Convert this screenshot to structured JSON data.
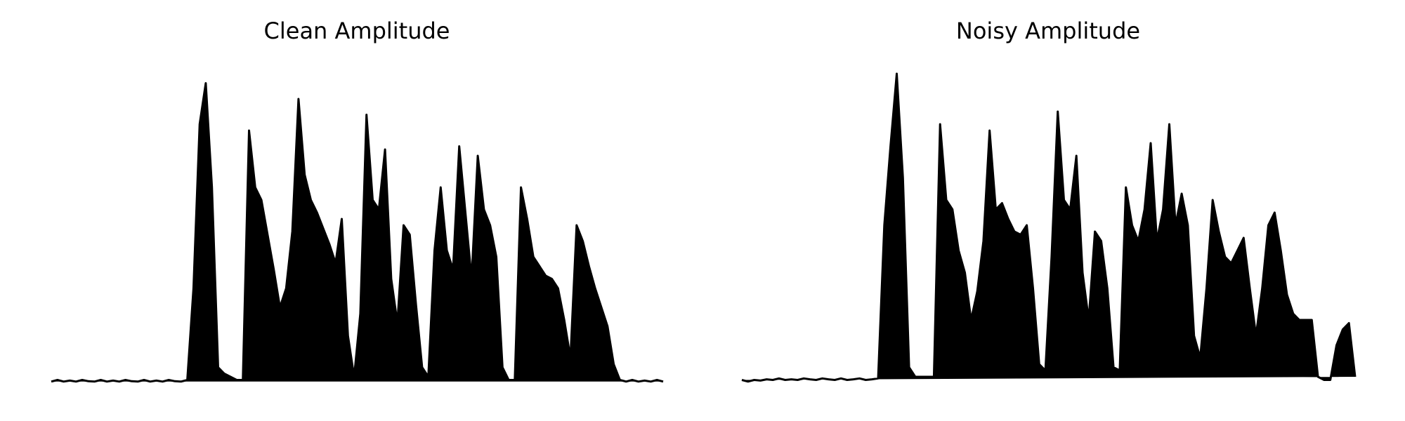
{
  "chart_data": [
    {
      "type": "area",
      "title": "Clean Amplitude",
      "color": "#000000",
      "ylim": [
        0,
        1
      ],
      "values": [
        0.005,
        0.01,
        0.005,
        0.008,
        0.005,
        0.01,
        0.006,
        0.005,
        0.01,
        0.005,
        0.008,
        0.005,
        0.01,
        0.006,
        0.005,
        0.01,
        0.005,
        0.008,
        0.005,
        0.01,
        0.006,
        0.005,
        0.01,
        0.3,
        0.82,
        0.95,
        0.62,
        0.05,
        0.03,
        0.02,
        0.01,
        0.01,
        0.8,
        0.62,
        0.58,
        0.47,
        0.36,
        0.24,
        0.3,
        0.48,
        0.9,
        0.66,
        0.58,
        0.54,
        0.49,
        0.44,
        0.38,
        0.52,
        0.15,
        0.02,
        0.22,
        0.85,
        0.58,
        0.55,
        0.74,
        0.33,
        0.19,
        0.5,
        0.47,
        0.25,
        0.05,
        0.02,
        0.42,
        0.62,
        0.42,
        0.36,
        0.75,
        0.54,
        0.33,
        0.72,
        0.55,
        0.5,
        0.4,
        0.05,
        0.01,
        0.01,
        0.62,
        0.52,
        0.4,
        0.37,
        0.34,
        0.33,
        0.3,
        0.2,
        0.08,
        0.5,
        0.45,
        0.37,
        0.3,
        0.24,
        0.18,
        0.06,
        0.01,
        0.005,
        0.01,
        0.005,
        0.008,
        0.005,
        0.01,
        0.005
      ]
    },
    {
      "type": "area",
      "title": "Noisy Amplitude",
      "color": "#000000",
      "ylim": [
        0,
        1
      ],
      "values": [
        0.01,
        0.005,
        0.01,
        0.008,
        0.012,
        0.01,
        0.015,
        0.01,
        0.012,
        0.01,
        0.015,
        0.012,
        0.01,
        0.015,
        0.012,
        0.01,
        0.015,
        0.01,
        0.012,
        0.015,
        0.01,
        0.012,
        0.015,
        0.5,
        0.75,
        0.98,
        0.65,
        0.05,
        0.02,
        0.02,
        0.02,
        0.02,
        0.82,
        0.58,
        0.55,
        0.42,
        0.35,
        0.2,
        0.29,
        0.45,
        0.8,
        0.55,
        0.57,
        0.52,
        0.48,
        0.47,
        0.5,
        0.3,
        0.06,
        0.04,
        0.4,
        0.86,
        0.58,
        0.55,
        0.72,
        0.35,
        0.2,
        0.48,
        0.45,
        0.3,
        0.05,
        0.04,
        0.62,
        0.5,
        0.45,
        0.55,
        0.76,
        0.45,
        0.55,
        0.82,
        0.5,
        0.6,
        0.5,
        0.15,
        0.08,
        0.3,
        0.58,
        0.48,
        0.4,
        0.38,
        0.42,
        0.46,
        0.3,
        0.15,
        0.3,
        0.5,
        0.54,
        0.42,
        0.28,
        0.22,
        0.2,
        0.2,
        0.2,
        0.02,
        0.01,
        0.01,
        0.12,
        0.17,
        0.19,
        0.02
      ]
    }
  ]
}
